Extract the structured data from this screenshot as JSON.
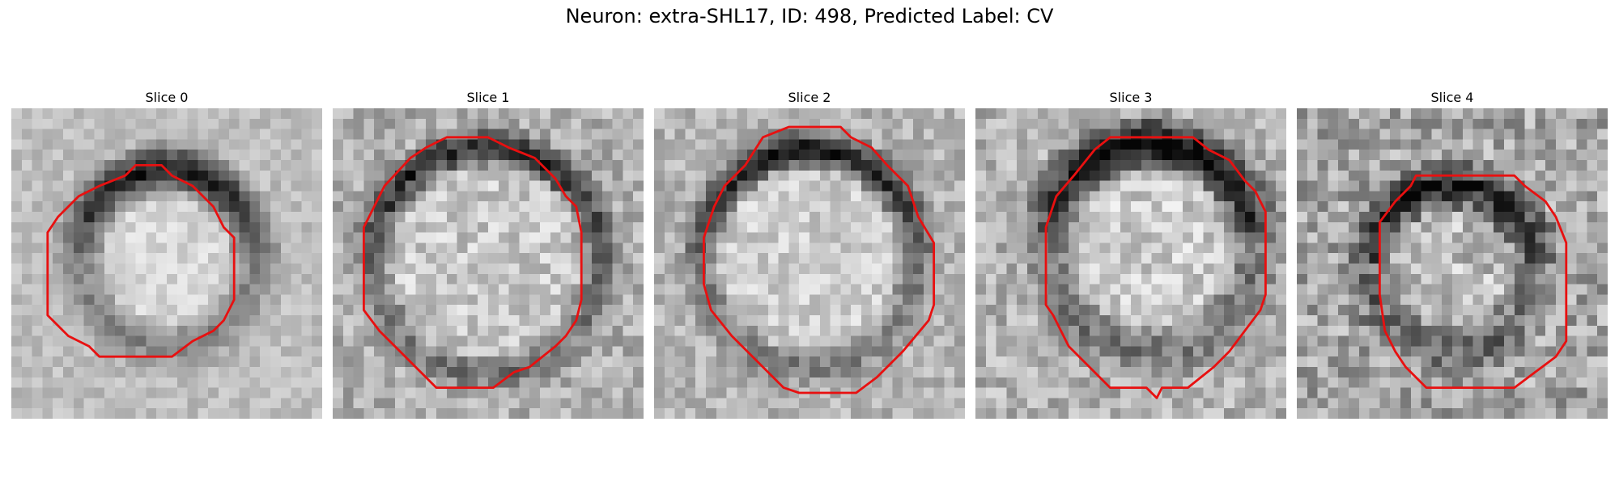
{
  "figure": {
    "title": "Neuron: extra-SHL17, ID: 498, Predicted Label: CV"
  },
  "contour_color": "#e81010",
  "panels": [
    {
      "title": "Slice 0"
    },
    {
      "title": "Slice 1"
    },
    {
      "title": "Slice 2"
    },
    {
      "title": "Slice 3"
    },
    {
      "title": "Slice 4"
    }
  ]
}
